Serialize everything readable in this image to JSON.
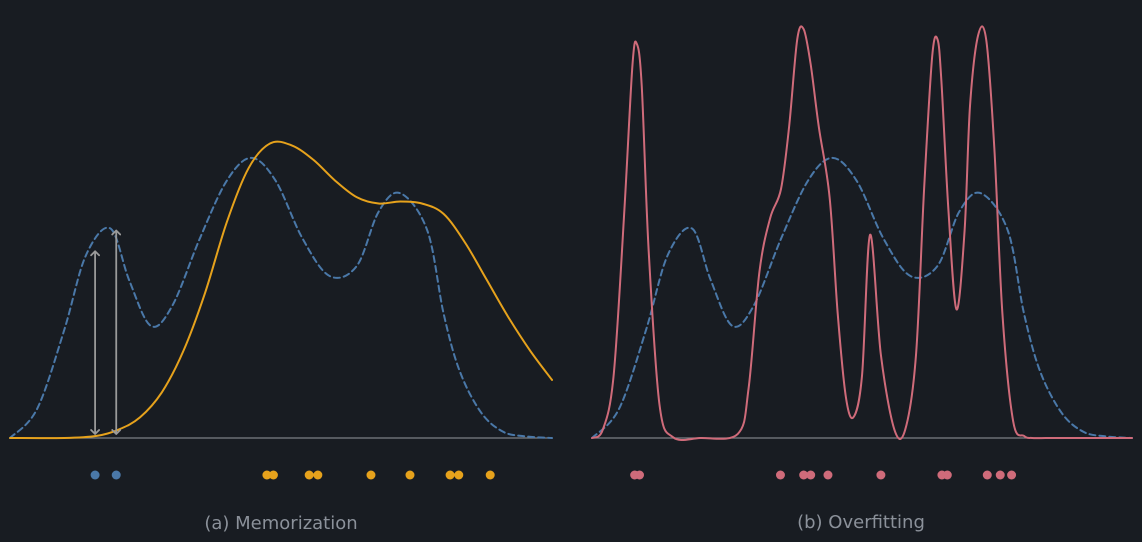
{
  "colors": {
    "background": "#181c22",
    "true_density": "#4a78a8",
    "memorization_fit": "#e6a21c",
    "overfitting_fit": "#cf6b7a",
    "baseline": "#7b7f86",
    "arrow": "#9a9a9a",
    "caption": "#8b919a"
  },
  "chart_data": [
    {
      "type": "line",
      "caption": "(a) Memorization",
      "x_range": [
        0,
        1
      ],
      "y_range": [
        0,
        1
      ],
      "grid": false,
      "series": [
        {
          "style": "dashed",
          "color_key": "true_density",
          "x": [
            0,
            0.05,
            0.1,
            0.14,
            0.185,
            0.22,
            0.26,
            0.3,
            0.35,
            0.4,
            0.445,
            0.49,
            0.54,
            0.59,
            0.64,
            0.68,
            0.72,
            0.77,
            0.8,
            0.83,
            0.87,
            0.91,
            0.95,
            1.0
          ],
          "y": [
            0.0,
            0.07,
            0.26,
            0.44,
            0.505,
            0.38,
            0.27,
            0.32,
            0.48,
            0.62,
            0.675,
            0.62,
            0.48,
            0.39,
            0.415,
            0.545,
            0.59,
            0.5,
            0.3,
            0.16,
            0.06,
            0.015,
            0.004,
            0.0
          ]
        },
        {
          "style": "solid",
          "color_key": "memorization_fit",
          "x": [
            0,
            0.1,
            0.16,
            0.2,
            0.24,
            0.28,
            0.32,
            0.36,
            0.4,
            0.44,
            0.48,
            0.52,
            0.56,
            0.6,
            0.64,
            0.68,
            0.72,
            0.76,
            0.8,
            0.84,
            0.88,
            0.92,
            0.96,
            1.0
          ],
          "y": [
            0.0,
            0.0,
            0.005,
            0.02,
            0.05,
            0.11,
            0.21,
            0.35,
            0.52,
            0.65,
            0.71,
            0.705,
            0.67,
            0.62,
            0.58,
            0.565,
            0.57,
            0.565,
            0.54,
            0.47,
            0.38,
            0.29,
            0.21,
            0.14
          ]
        }
      ],
      "arrows": [
        {
          "x": 0.157,
          "y_from": 0.0,
          "y_to": 0.45
        },
        {
          "x": 0.196,
          "y_from": 0.0,
          "y_to": 0.5
        }
      ],
      "points": [
        {
          "x": 0.157,
          "color_key": "true_density"
        },
        {
          "x": 0.196,
          "color_key": "true_density"
        },
        {
          "x": 0.474,
          "color_key": "memorization_fit"
        },
        {
          "x": 0.486,
          "color_key": "memorization_fit"
        },
        {
          "x": 0.552,
          "color_key": "memorization_fit"
        },
        {
          "x": 0.568,
          "color_key": "memorization_fit"
        },
        {
          "x": 0.666,
          "color_key": "memorization_fit"
        },
        {
          "x": 0.738,
          "color_key": "memorization_fit"
        },
        {
          "x": 0.812,
          "color_key": "memorization_fit"
        },
        {
          "x": 0.828,
          "color_key": "memorization_fit"
        },
        {
          "x": 0.886,
          "color_key": "memorization_fit"
        }
      ]
    },
    {
      "type": "line",
      "caption": "(b) Overfitting",
      "x_range": [
        0,
        1
      ],
      "y_range": [
        0,
        1
      ],
      "grid": false,
      "series": [
        {
          "style": "dashed",
          "color_key": "true_density",
          "x": [
            0,
            0.05,
            0.1,
            0.14,
            0.185,
            0.22,
            0.26,
            0.3,
            0.35,
            0.4,
            0.445,
            0.49,
            0.54,
            0.59,
            0.64,
            0.68,
            0.72,
            0.77,
            0.8,
            0.83,
            0.87,
            0.91,
            0.95,
            1.0
          ],
          "y": [
            0.0,
            0.07,
            0.26,
            0.44,
            0.505,
            0.38,
            0.27,
            0.32,
            0.48,
            0.62,
            0.675,
            0.62,
            0.48,
            0.39,
            0.415,
            0.545,
            0.59,
            0.5,
            0.3,
            0.16,
            0.06,
            0.015,
            0.004,
            0.0
          ]
        },
        {
          "style": "solid",
          "color_key": "overfitting_fit",
          "x": [
            0,
            0.02,
            0.04,
            0.06,
            0.075,
            0.083,
            0.092,
            0.105,
            0.125,
            0.15,
            0.2,
            0.27,
            0.29,
            0.31,
            0.33,
            0.35,
            0.365,
            0.38,
            0.392,
            0.405,
            0.42,
            0.44,
            0.455,
            0.47,
            0.484,
            0.5,
            0.515,
            0.535,
            0.56,
            0.58,
            0.6,
            0.615,
            0.63,
            0.64,
            0.647,
            0.66,
            0.675,
            0.69,
            0.7,
            0.715,
            0.73,
            0.745,
            0.76,
            0.78,
            0.8,
            0.815,
            0.84,
            0.86,
            1.0
          ],
          "y": [
            0.0,
            0.02,
            0.15,
            0.55,
            0.9,
            0.95,
            0.85,
            0.45,
            0.08,
            0.002,
            0.0,
            0.01,
            0.12,
            0.4,
            0.53,
            0.6,
            0.75,
            0.96,
            0.985,
            0.9,
            0.75,
            0.58,
            0.3,
            0.1,
            0.05,
            0.15,
            0.49,
            0.2,
            0.02,
            0.02,
            0.2,
            0.6,
            0.92,
            0.96,
            0.86,
            0.55,
            0.31,
            0.5,
            0.8,
            0.97,
            0.96,
            0.7,
            0.3,
            0.04,
            0.005,
            0.0,
            0.0,
            0.0,
            0.0
          ]
        }
      ],
      "points": [
        {
          "x": 0.079,
          "color_key": "overfitting_fit"
        },
        {
          "x": 0.088,
          "color_key": "overfitting_fit"
        },
        {
          "x": 0.349,
          "color_key": "overfitting_fit"
        },
        {
          "x": 0.392,
          "color_key": "overfitting_fit"
        },
        {
          "x": 0.405,
          "color_key": "overfitting_fit"
        },
        {
          "x": 0.437,
          "color_key": "overfitting_fit"
        },
        {
          "x": 0.535,
          "color_key": "overfitting_fit"
        },
        {
          "x": 0.648,
          "color_key": "overfitting_fit"
        },
        {
          "x": 0.658,
          "color_key": "overfitting_fit"
        },
        {
          "x": 0.732,
          "color_key": "overfitting_fit"
        },
        {
          "x": 0.756,
          "color_key": "overfitting_fit"
        },
        {
          "x": 0.777,
          "color_key": "overfitting_fit"
        }
      ]
    }
  ]
}
